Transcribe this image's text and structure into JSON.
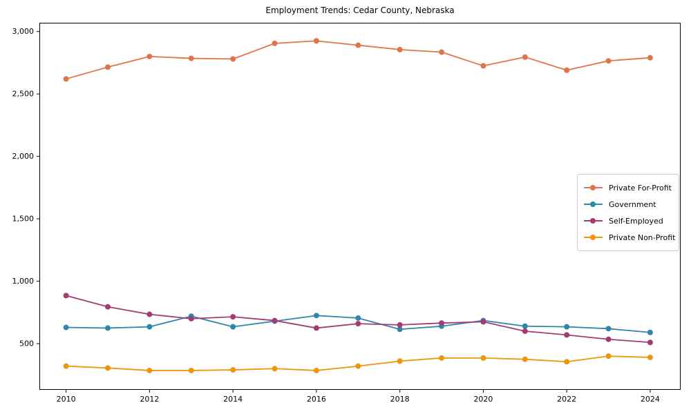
{
  "page": {
    "background": "#ffffff",
    "text_color": "#000000",
    "axis_color": "#000000"
  },
  "chart_data": {
    "type": "line",
    "title": "Employment Trends: Cedar County, Nebraska",
    "xlabel": "",
    "ylabel": "",
    "grid": false,
    "legend_position": "center-right",
    "x": [
      2010,
      2011,
      2012,
      2013,
      2014,
      2015,
      2016,
      2017,
      2018,
      2019,
      2020,
      2021,
      2022,
      2023,
      2024
    ],
    "series": [
      {
        "name": "Private For-Profit",
        "color": "#e1744b",
        "values": [
          2620,
          2715,
          2800,
          2785,
          2780,
          2905,
          2925,
          2890,
          2855,
          2835,
          2725,
          2795,
          2690,
          2765,
          2790
        ]
      },
      {
        "name": "Government",
        "color": "#2e86ab",
        "values": [
          630,
          625,
          635,
          720,
          635,
          680,
          725,
          705,
          615,
          640,
          685,
          640,
          635,
          620,
          590
        ]
      },
      {
        "name": "Self-Employed",
        "color": "#a23b72",
        "values": [
          885,
          795,
          735,
          700,
          715,
          685,
          625,
          660,
          650,
          665,
          675,
          600,
          570,
          535,
          510
        ]
      },
      {
        "name": "Private Non-Profit",
        "color": "#f0940c",
        "values": [
          320,
          305,
          285,
          285,
          290,
          300,
          285,
          320,
          360,
          385,
          385,
          375,
          355,
          400,
          390
        ]
      }
    ],
    "xticks": {
      "values": [
        2010,
        2012,
        2014,
        2016,
        2018,
        2020,
        2022,
        2024
      ],
      "labels": [
        "2010",
        "2012",
        "2014",
        "2016",
        "2018",
        "2020",
        "2022",
        "2024"
      ]
    },
    "yticks": {
      "values": [
        500,
        1000,
        1500,
        2000,
        2500,
        3000
      ],
      "labels": [
        "500",
        "1,000",
        "1,500",
        "2,000",
        "2,500",
        "3,000"
      ]
    },
    "xlim": [
      2009.36,
      2024.73
    ],
    "ylim": [
      130,
      3070
    ]
  }
}
